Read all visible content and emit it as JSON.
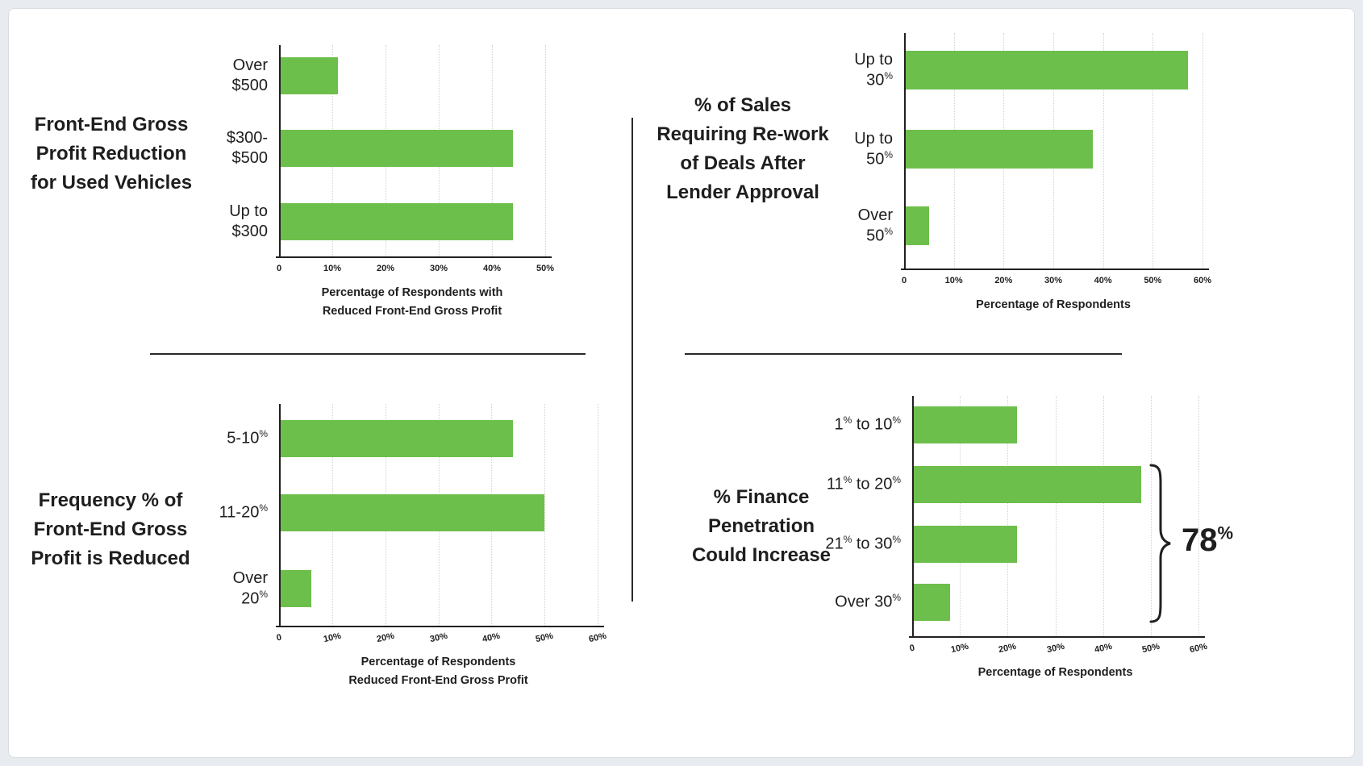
{
  "page": {
    "background": "#e8ecf1",
    "panel_background": "#ffffff",
    "panel_border": "#d8dde3",
    "bar_color": "#6dbf4b",
    "text_color": "#1e1e1f",
    "gridline_color": "#d2d2d2"
  },
  "chart_data": [
    {
      "type": "bar",
      "orientation": "horizontal",
      "id": "front-end-gross-profit-reduction-used-vehicles",
      "title": "Front-End Gross Profit Reduction for Used Vehicles",
      "title_lines": [
        "Front-End Gross",
        "Profit Reduction",
        "for Used Vehicles"
      ],
      "categories": [
        "Over $500",
        "$300-$500",
        "Up to $300"
      ],
      "category_label_lines": [
        [
          "Over",
          "$500"
        ],
        [
          "$300-",
          "$500"
        ],
        [
          "Up to",
          "$300"
        ]
      ],
      "values": [
        11,
        44,
        44
      ],
      "xlim": [
        0,
        50
      ],
      "ticks": [
        "0",
        "10%",
        "20%",
        "30%",
        "40%",
        "50%"
      ],
      "xlabel": "Percentage of Respondents with Reduced Front-End Gross Profit",
      "xlabel_lines": [
        "Percentage of  Respondents with",
        "Reduced Front-End Gross Profit"
      ],
      "grid": "dotted-vertical",
      "legend": "none"
    },
    {
      "type": "bar",
      "orientation": "horizontal",
      "id": "sales-requiring-rework-after-lender-approval",
      "title": "% of Sales Requiring Re-work of Deals After Lender Approval",
      "title_lines": [
        "% of Sales",
        "Requiring Re-work",
        "of Deals After",
        "Lender Approval"
      ],
      "categories": [
        "Up to 30%",
        "Up to 50%",
        "Over 50%"
      ],
      "category_label_lines": [
        [
          "Up to",
          "30%"
        ],
        [
          "Up to",
          "50%"
        ],
        [
          "Over",
          "50%"
        ]
      ],
      "values": [
        57,
        38,
        5
      ],
      "xlim": [
        0,
        60
      ],
      "ticks": [
        "0",
        "10%",
        "20%",
        "30%",
        "40%",
        "50%",
        "60%"
      ],
      "xlabel": "Percentage of Respondents",
      "xlabel_lines": [
        "Percentage of  Respondents"
      ],
      "grid": "dotted-vertical",
      "legend": "none"
    },
    {
      "type": "bar",
      "orientation": "horizontal",
      "id": "frequency-front-end-gross-profit-reduced",
      "title": "Frequency % of Front-End Gross Profit is Reduced",
      "title_lines": [
        "Frequency % of",
        "Front-End Gross",
        "Profit is Reduced"
      ],
      "categories": [
        "5-10%",
        "11-20%",
        "Over 20%"
      ],
      "category_label_lines": [
        [
          "5-10%"
        ],
        [
          "11-20%"
        ],
        [
          "Over",
          "20%"
        ]
      ],
      "values": [
        44,
        50,
        6
      ],
      "xlim": [
        0,
        60
      ],
      "ticks": [
        "0",
        "10%",
        "20%",
        "30%",
        "40%",
        "50%",
        "60%"
      ],
      "xlabel": "Percentage of Respondents Reduced Front-End Gross Profit",
      "xlabel_lines": [
        "Percentage of  Respondents",
        "Reduced Front-End Gross Profit"
      ],
      "grid": "dotted-vertical",
      "legend": "none"
    },
    {
      "type": "bar",
      "orientation": "horizontal",
      "id": "finance-penetration-could-increase",
      "title": "% Finance Penetration Could Increase",
      "title_lines": [
        "% Finance",
        "Penetration",
        "Could Increase"
      ],
      "categories": [
        "1% to 10%",
        "11% to 20%",
        "21% to 30%",
        "Over 30%"
      ],
      "category_label_lines": [
        [
          "1% to 10%"
        ],
        [
          "11% to 20%"
        ],
        [
          "21% to 30%"
        ],
        [
          "Over 30%"
        ]
      ],
      "values": [
        22,
        48,
        22,
        8
      ],
      "xlim": [
        0,
        60
      ],
      "ticks": [
        "0",
        "10%",
        "20%",
        "30%",
        "40%",
        "50%",
        "60%"
      ],
      "xlabel": "Percentage of Respondents",
      "xlabel_lines": [
        "Percentage of  Respondents"
      ],
      "grid": "dotted-vertical",
      "legend": "none",
      "annotation": {
        "text": "78%",
        "base": "78",
        "sup": "%",
        "spans_categories": [
          "11% to 20%",
          "21% to 30%",
          "Over 30%"
        ]
      }
    }
  ]
}
